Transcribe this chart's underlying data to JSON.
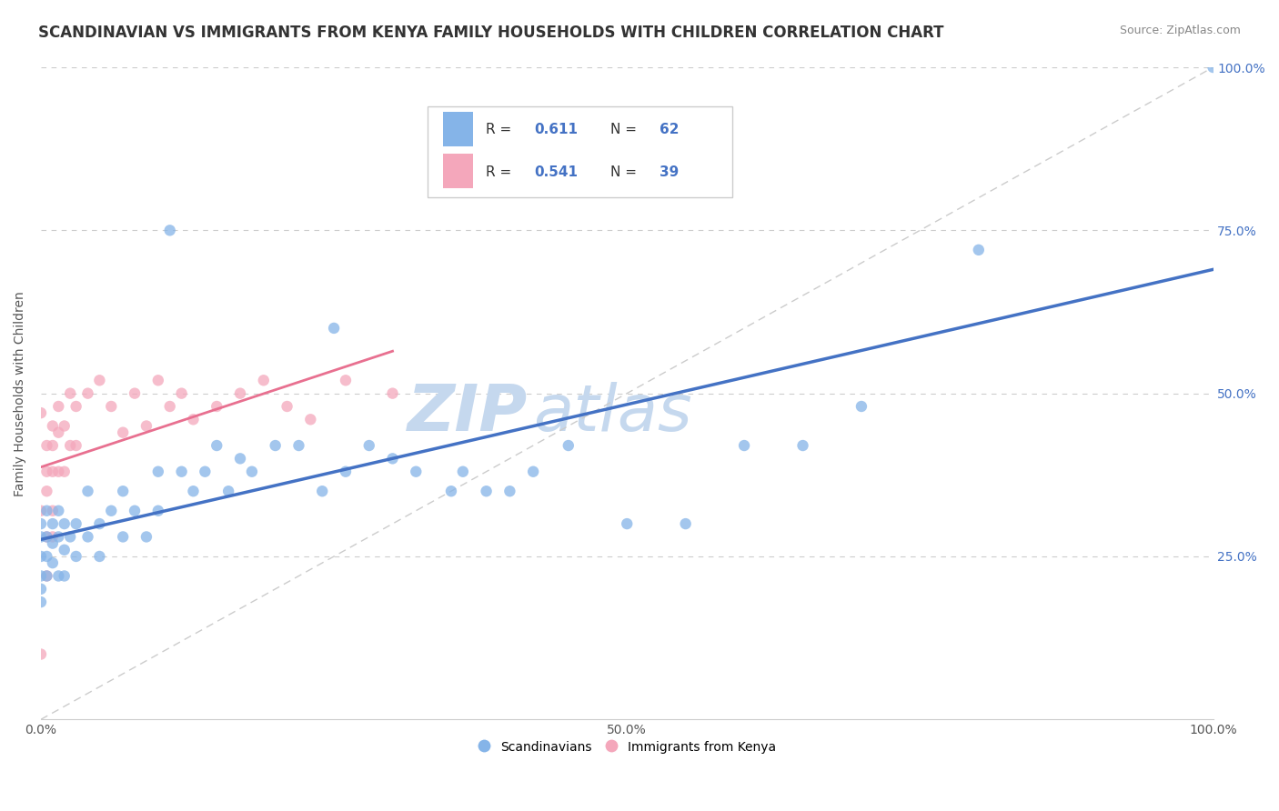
{
  "title": "SCANDINAVIAN VS IMMIGRANTS FROM KENYA FAMILY HOUSEHOLDS WITH CHILDREN CORRELATION CHART",
  "source": "Source: ZipAtlas.com",
  "ylabel": "Family Households with Children",
  "xlim": [
    0.0,
    1.0
  ],
  "ylim": [
    0.0,
    1.0
  ],
  "x_ticks": [
    0.0,
    0.25,
    0.5,
    0.75,
    1.0
  ],
  "x_tick_labels": [
    "0.0%",
    "",
    "50.0%",
    "",
    "100.0%"
  ],
  "y_ticks": [
    0.0,
    0.25,
    0.5,
    0.75,
    1.0
  ],
  "y_tick_labels_right": [
    "",
    "25.0%",
    "50.0%",
    "75.0%",
    "100.0%"
  ],
  "scandinavian_color": "#85b4e8",
  "kenya_color": "#f4a7bb",
  "scatter_alpha": 0.75,
  "scatter_size": 80,
  "R_scan": 0.611,
  "N_scan": 62,
  "R_kenya": 0.541,
  "N_kenya": 39,
  "watermark": "ZIPatlas",
  "watermark_color": "#c5d8ee",
  "legend_label_scan": "Scandinavians",
  "legend_label_kenya": "Immigrants from Kenya",
  "title_fontsize": 12,
  "tick_fontsize": 10,
  "right_tick_color": "#4472c4",
  "scandinavian_x": [
    0.0,
    0.0,
    0.0,
    0.0,
    0.0,
    0.0,
    0.005,
    0.005,
    0.005,
    0.005,
    0.01,
    0.01,
    0.01,
    0.015,
    0.015,
    0.015,
    0.02,
    0.02,
    0.02,
    0.025,
    0.03,
    0.03,
    0.04,
    0.04,
    0.05,
    0.05,
    0.06,
    0.07,
    0.07,
    0.08,
    0.09,
    0.1,
    0.1,
    0.11,
    0.12,
    0.13,
    0.14,
    0.15,
    0.16,
    0.17,
    0.18,
    0.2,
    0.22,
    0.24,
    0.25,
    0.26,
    0.28,
    0.3,
    0.32,
    0.35,
    0.36,
    0.38,
    0.4,
    0.42,
    0.45,
    0.5,
    0.55,
    0.6,
    0.65,
    0.7,
    0.8,
    1.0
  ],
  "scandinavian_y": [
    0.3,
    0.28,
    0.25,
    0.22,
    0.2,
    0.18,
    0.32,
    0.28,
    0.25,
    0.22,
    0.3,
    0.27,
    0.24,
    0.32,
    0.28,
    0.22,
    0.3,
    0.26,
    0.22,
    0.28,
    0.3,
    0.25,
    0.35,
    0.28,
    0.3,
    0.25,
    0.32,
    0.35,
    0.28,
    0.32,
    0.28,
    0.38,
    0.32,
    0.75,
    0.38,
    0.35,
    0.38,
    0.42,
    0.35,
    0.4,
    0.38,
    0.42,
    0.42,
    0.35,
    0.6,
    0.38,
    0.42,
    0.4,
    0.38,
    0.35,
    0.38,
    0.35,
    0.35,
    0.38,
    0.42,
    0.3,
    0.3,
    0.42,
    0.42,
    0.48,
    0.72,
    1.0
  ],
  "kenya_x": [
    0.0,
    0.0,
    0.0,
    0.005,
    0.005,
    0.005,
    0.005,
    0.005,
    0.01,
    0.01,
    0.01,
    0.01,
    0.01,
    0.015,
    0.015,
    0.015,
    0.02,
    0.02,
    0.025,
    0.025,
    0.03,
    0.03,
    0.04,
    0.05,
    0.06,
    0.07,
    0.08,
    0.09,
    0.1,
    0.11,
    0.12,
    0.13,
    0.15,
    0.17,
    0.19,
    0.21,
    0.23,
    0.26,
    0.3
  ],
  "kenya_y": [
    0.47,
    0.32,
    0.1,
    0.42,
    0.38,
    0.35,
    0.28,
    0.22,
    0.45,
    0.42,
    0.38,
    0.32,
    0.28,
    0.48,
    0.44,
    0.38,
    0.45,
    0.38,
    0.5,
    0.42,
    0.48,
    0.42,
    0.5,
    0.52,
    0.48,
    0.44,
    0.5,
    0.45,
    0.52,
    0.48,
    0.5,
    0.46,
    0.48,
    0.5,
    0.52,
    0.48,
    0.46,
    0.52,
    0.5
  ]
}
